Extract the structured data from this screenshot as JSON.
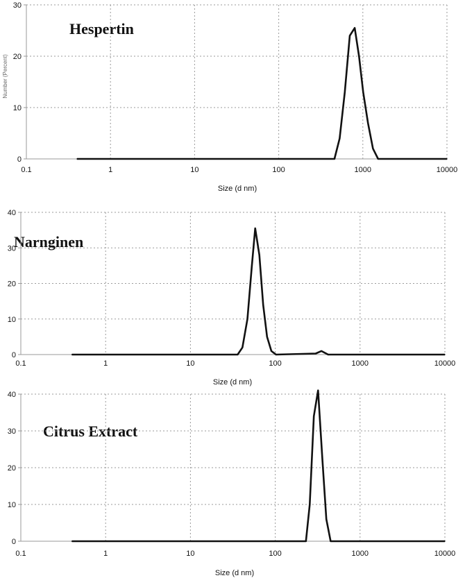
{
  "chart_data": [
    {
      "type": "line",
      "title": "Hespertin",
      "xlabel": "Size (d nm)",
      "ylabel": "Number (Percent)",
      "x_scale": "log",
      "xlim": [
        0.1,
        10000
      ],
      "ylim": [
        0,
        30
      ],
      "x_ticks": [
        "0.1",
        "1",
        "10",
        "100",
        "1000",
        "10000"
      ],
      "y_ticks": [
        "0",
        "10",
        "20",
        "30"
      ],
      "grid": true,
      "series": [
        {
          "x": [
            0.4,
            460,
            530,
            610,
            700,
            800,
            900,
            1010,
            1150,
            1320,
            1520,
            10000
          ],
          "y": [
            0,
            0,
            4,
            13,
            24,
            25.5,
            20,
            13,
            7,
            2,
            0,
            0
          ]
        }
      ]
    },
    {
      "type": "line",
      "title": "Narnginen",
      "xlabel": "Size (d nm)",
      "ylabel": "",
      "x_scale": "log",
      "xlim": [
        0.1,
        10000
      ],
      "ylim": [
        0,
        40
      ],
      "x_ticks": [
        "0.1",
        "1",
        "10",
        "100",
        "1000",
        "10000"
      ],
      "y_ticks": [
        "0",
        "10",
        "20",
        "30",
        "40"
      ],
      "grid": true,
      "series": [
        {
          "x": [
            0.4,
            36,
            41,
            47,
            53,
            58,
            65,
            72,
            80,
            90,
            102,
            300,
            350,
            420,
            10000
          ],
          "y": [
            0,
            0,
            2,
            10,
            25,
            35.5,
            28,
            14,
            5,
            1,
            0,
            0.3,
            1,
            0,
            0
          ]
        }
      ]
    },
    {
      "type": "line",
      "title": "Citrus Extract",
      "xlabel": "Size (d nm)",
      "ylabel": "",
      "x_scale": "log",
      "xlim": [
        0.1,
        10000
      ],
      "ylim": [
        0,
        40
      ],
      "x_ticks": [
        "0.1",
        "1",
        "10",
        "100",
        "1000",
        "10000"
      ],
      "y_ticks": [
        "0",
        "10",
        "20",
        "30",
        "40"
      ],
      "grid": true,
      "series": [
        {
          "x": [
            0.4,
            230,
            255,
            285,
            320,
            360,
            400,
            450,
            10000
          ],
          "y": [
            0,
            0,
            10,
            34,
            41,
            22,
            6,
            0,
            0
          ]
        }
      ]
    }
  ]
}
